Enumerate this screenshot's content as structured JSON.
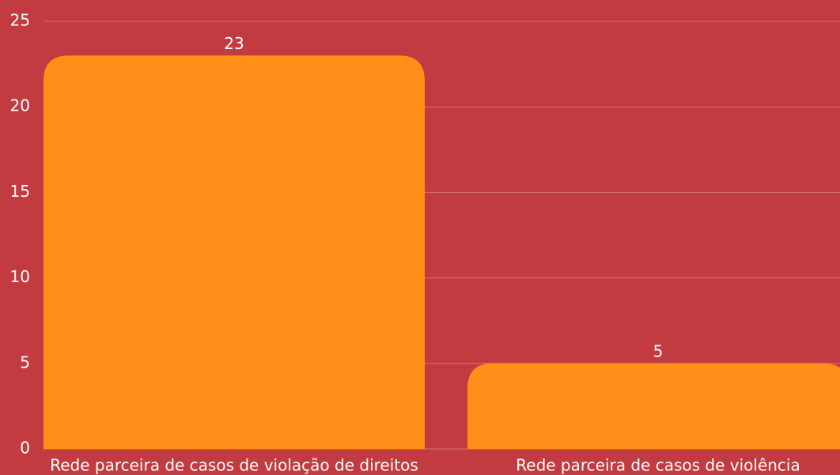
{
  "chart_data": {
    "type": "bar",
    "categories": [
      "Rede parceira de casos de violação de direitos",
      "Rede parceira de casos de violência"
    ],
    "values": [
      23,
      5
    ],
    "color": "#ff8f17",
    "ylim": [
      0,
      25
    ],
    "yticks": [
      0,
      5,
      10,
      15,
      20,
      25
    ],
    "grid": true
  }
}
